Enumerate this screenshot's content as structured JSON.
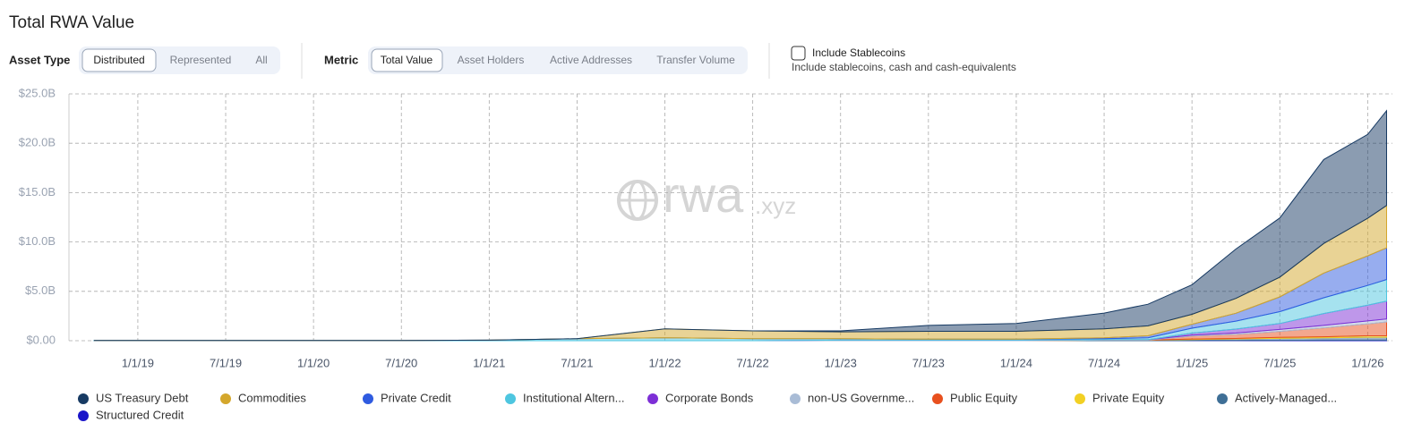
{
  "chart_data": {
    "type": "stacked-area",
    "title": "Total RWA Value",
    "x": [
      "10/1/18",
      "1/1/19",
      "7/1/19",
      "1/1/20",
      "7/1/20",
      "1/1/21",
      "7/1/21",
      "1/1/22",
      "7/1/22",
      "1/1/23",
      "7/1/23",
      "1/1/24",
      "7/1/24",
      "10/1/24",
      "1/1/25",
      "4/1/25",
      "7/1/25",
      "10/1/25",
      "1/1/26",
      "2/10/26"
    ],
    "xlim": [
      "8/10/18",
      "2/22/26"
    ],
    "xticks": [
      "1/1/19",
      "7/1/19",
      "1/1/20",
      "7/1/20",
      "1/1/21",
      "7/1/21",
      "1/1/22",
      "7/1/22",
      "1/1/23",
      "7/1/23",
      "1/1/24",
      "7/1/24",
      "1/1/25",
      "7/1/25",
      "1/1/26"
    ],
    "ylim": [
      0,
      25
    ],
    "yticks": [
      {
        "value": 0,
        "label": "$0.00"
      },
      {
        "value": 5,
        "label": "$5.0B"
      },
      {
        "value": 10,
        "label": "$10.0B"
      },
      {
        "value": 15,
        "label": "$15.0B"
      },
      {
        "value": 20,
        "label": "$20.0B"
      },
      {
        "value": 25,
        "label": "$25.0B"
      }
    ],
    "grid": true,
    "series": [
      {
        "name": "US Treasury Debt",
        "color": "#173a63",
        "values": [
          0,
          0,
          0,
          0,
          0,
          0,
          0,
          0,
          0,
          0.1,
          0.6,
          0.8,
          1.6,
          2.2,
          3.0,
          5.0,
          6.0,
          8.5,
          8.5,
          9.6
        ]
      },
      {
        "name": "Commodities",
        "color": "#d4a72c",
        "values": [
          0,
          0,
          0,
          0,
          0,
          0,
          0,
          0.9,
          0.8,
          0.7,
          0.8,
          0.8,
          0.9,
          1.0,
          1.0,
          1.5,
          2.0,
          3.0,
          3.8,
          4.3
        ]
      },
      {
        "name": "Private Credit",
        "color": "#2f5be0",
        "values": [
          0,
          0,
          0,
          0,
          0,
          0,
          0,
          0,
          0,
          0,
          0,
          0,
          0.1,
          0.2,
          0.4,
          0.8,
          1.5,
          2.5,
          3.0,
          3.2
        ]
      },
      {
        "name": "Institutional Altern...",
        "color": "#4ec6e0",
        "values": [
          0.03,
          0.03,
          0.03,
          0.03,
          0.03,
          0.05,
          0.2,
          0.3,
          0.2,
          0.15,
          0.1,
          0.1,
          0.1,
          0.2,
          0.5,
          0.8,
          1.2,
          1.6,
          2.0,
          2.2
        ]
      },
      {
        "name": "Corporate Bonds",
        "color": "#7d2fd6",
        "values": [
          0,
          0,
          0,
          0,
          0,
          0,
          0,
          0,
          0,
          0,
          0,
          0,
          0,
          0,
          0.2,
          0.4,
          0.6,
          1.2,
          1.6,
          1.8
        ]
      },
      {
        "name": "non-US Governme...",
        "color": "#a9bcd6",
        "values": [
          0,
          0,
          0,
          0,
          0,
          0,
          0,
          0,
          0,
          0.05,
          0.05,
          0.05,
          0.05,
          0.05,
          0.1,
          0.15,
          0.2,
          0.25,
          0.3,
          0.3
        ]
      },
      {
        "name": "Public Equity",
        "color": "#e8501e",
        "values": [
          0,
          0,
          0,
          0,
          0,
          0,
          0,
          0,
          0,
          0,
          0,
          0,
          0,
          0,
          0.3,
          0.4,
          0.6,
          0.9,
          1.2,
          1.4
        ]
      },
      {
        "name": "Private Equity",
        "color": "#f2d024",
        "values": [
          0,
          0,
          0,
          0,
          0,
          0,
          0,
          0,
          0,
          0,
          0,
          0,
          0,
          0,
          0.05,
          0.05,
          0.1,
          0.1,
          0.15,
          0.15
        ]
      },
      {
        "name": "Actively-Managed...",
        "color": "#3f6f96",
        "values": [
          0,
          0,
          0,
          0,
          0,
          0,
          0,
          0,
          0,
          0,
          0,
          0,
          0.05,
          0.05,
          0.1,
          0.15,
          0.2,
          0.25,
          0.3,
          0.3
        ]
      },
      {
        "name": "Structured Credit",
        "color": "#1a14c9",
        "values": [
          0,
          0,
          0,
          0,
          0,
          0,
          0,
          0,
          0,
          0,
          0,
          0,
          0,
          0,
          0.02,
          0.03,
          0.04,
          0.05,
          0.05,
          0.05
        ]
      }
    ]
  },
  "controls": {
    "asset_type": {
      "label": "Asset Type",
      "options": [
        "Distributed",
        "Represented",
        "All"
      ]
    },
    "metric": {
      "label": "Metric",
      "options": [
        "Total Value",
        "Asset Holders",
        "Active Addresses",
        "Transfer Volume"
      ]
    },
    "stablecoins": {
      "label": "Include Stablecoins",
      "description": "Include stablecoins, cash and cash-equivalents"
    },
    "watermark": [
      "rwa",
      ".xyz"
    ]
  }
}
